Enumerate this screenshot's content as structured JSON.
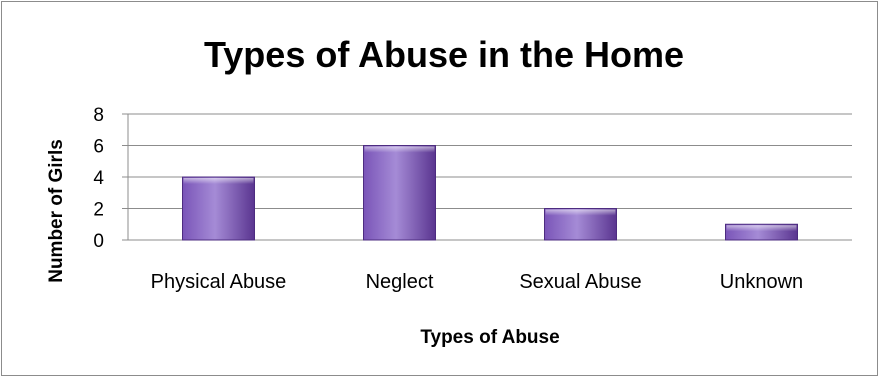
{
  "chart_data": {
    "type": "bar",
    "title": "Types of Abuse in the Home",
    "xlabel": "Types of Abuse",
    "ylabel": "Number of Girls",
    "categories": [
      "Physical Abuse",
      "Neglect",
      "Sexual Abuse",
      "Unknown"
    ],
    "values": [
      4,
      6,
      2,
      1
    ],
    "ylim": [
      0,
      8
    ],
    "yticks": [
      "0",
      "2",
      "4",
      "6",
      "8"
    ],
    "grid": true,
    "legend": "none",
    "colors": {
      "bar_top": "#a58bd6",
      "bar_mid": "#7a55b8",
      "bar_bottom": "#5a3590",
      "bar_stroke": "#4d2c80"
    }
  }
}
